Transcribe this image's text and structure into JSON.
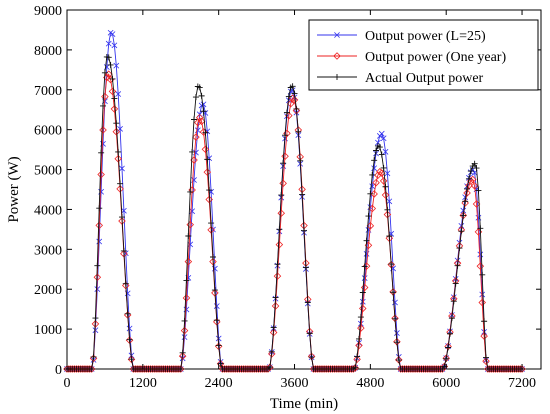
{
  "chart_data": {
    "type": "line",
    "title": "",
    "xlabel": "Time (min)",
    "ylabel": "Power (W)",
    "xlim": [
      0,
      7500
    ],
    "ylim": [
      0,
      9000
    ],
    "xticks": [
      0,
      1200,
      2400,
      3600,
      4800,
      6000,
      7200
    ],
    "yticks": [
      0,
      1000,
      2000,
      3000,
      4000,
      5000,
      6000,
      7000,
      8000,
      9000
    ],
    "grid": false,
    "legend_position": "top-right",
    "sample_interval_min": 30,
    "days": [
      {
        "start": 400,
        "end": 1050
      },
      {
        "start": 1800,
        "end": 2450
      },
      {
        "start": 3200,
        "end": 3900
      },
      {
        "start": 4550,
        "end": 5280
      },
      {
        "start": 5950,
        "end": 6650
      }
    ],
    "series": [
      {
        "name": "Output power (L=25)",
        "color": "#3333ee",
        "marker": "x",
        "peaks": [
          {
            "t": 700,
            "v": 8450
          },
          {
            "t": 2150,
            "v": 6650
          },
          {
            "t": 3560,
            "v": 7000
          },
          {
            "t": 4980,
            "v": 5900
          },
          {
            "t": 6430,
            "v": 5000
          }
        ]
      },
      {
        "name": "Output power (One year)",
        "color": "#ee2222",
        "marker": "diamond",
        "peaks": [
          {
            "t": 650,
            "v": 7400
          },
          {
            "t": 2100,
            "v": 6300
          },
          {
            "t": 3580,
            "v": 6800
          },
          {
            "t": 4960,
            "v": 4950
          },
          {
            "t": 6420,
            "v": 4750
          }
        ]
      },
      {
        "name": "Actual Output power",
        "color": "#111111",
        "marker": "plus",
        "peaks": [
          {
            "t": 640,
            "v": 7850
          },
          {
            "t": 2080,
            "v": 7100
          },
          {
            "t": 3560,
            "v": 7100
          },
          {
            "t": 4930,
            "v": 5600
          },
          {
            "t": 6460,
            "v": 5150
          }
        ]
      }
    ]
  }
}
